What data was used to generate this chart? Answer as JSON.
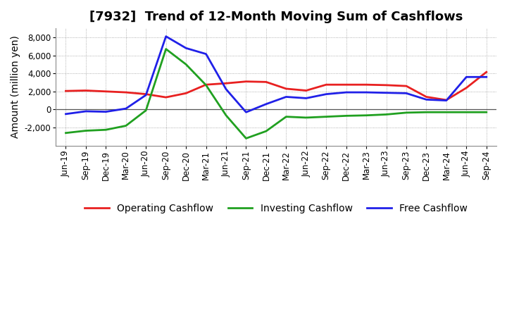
{
  "title": "[7932]  Trend of 12-Month Moving Sum of Cashflows",
  "ylabel": "Amount (million yen)",
  "x_labels": [
    "Jun-19",
    "Sep-19",
    "Dec-19",
    "Mar-20",
    "Jun-20",
    "Sep-20",
    "Dec-20",
    "Mar-21",
    "Jun-21",
    "Sep-21",
    "Dec-21",
    "Mar-22",
    "Jun-22",
    "Sep-22",
    "Dec-22",
    "Mar-23",
    "Jun-23",
    "Sep-23",
    "Dec-23",
    "Mar-24",
    "Jun-24",
    "Sep-24"
  ],
  "operating": [
    2050,
    2100,
    2000,
    1900,
    1700,
    1350,
    1800,
    2750,
    2900,
    3100,
    3050,
    2300,
    2100,
    2750,
    2750,
    2750,
    2700,
    2600,
    1400,
    1050,
    2400,
    4150
  ],
  "investing": [
    -2600,
    -2350,
    -2250,
    -1800,
    -100,
    6700,
    5000,
    2700,
    -650,
    -3200,
    -2400,
    -800,
    -900,
    -800,
    -700,
    -650,
    -550,
    -350,
    -300,
    -300,
    -300,
    -300
  ],
  "free": [
    -500,
    -200,
    -250,
    100,
    1600,
    8100,
    6800,
    6150,
    2250,
    -300,
    600,
    1400,
    1250,
    1700,
    1900,
    1900,
    1850,
    1800,
    1100,
    1000,
    3600,
    3600
  ],
  "operating_color": "#e82020",
  "investing_color": "#20a020",
  "free_color": "#2020e8",
  "background_color": "#ffffff",
  "grid_color": "#999999",
  "ylim": [
    -4000,
    9000
  ],
  "yticks": [
    -2000,
    0,
    2000,
    4000,
    6000,
    8000
  ],
  "title_fontsize": 13,
  "label_fontsize": 10,
  "tick_fontsize": 8.5,
  "legend_fontsize": 10,
  "linewidth": 2.0
}
